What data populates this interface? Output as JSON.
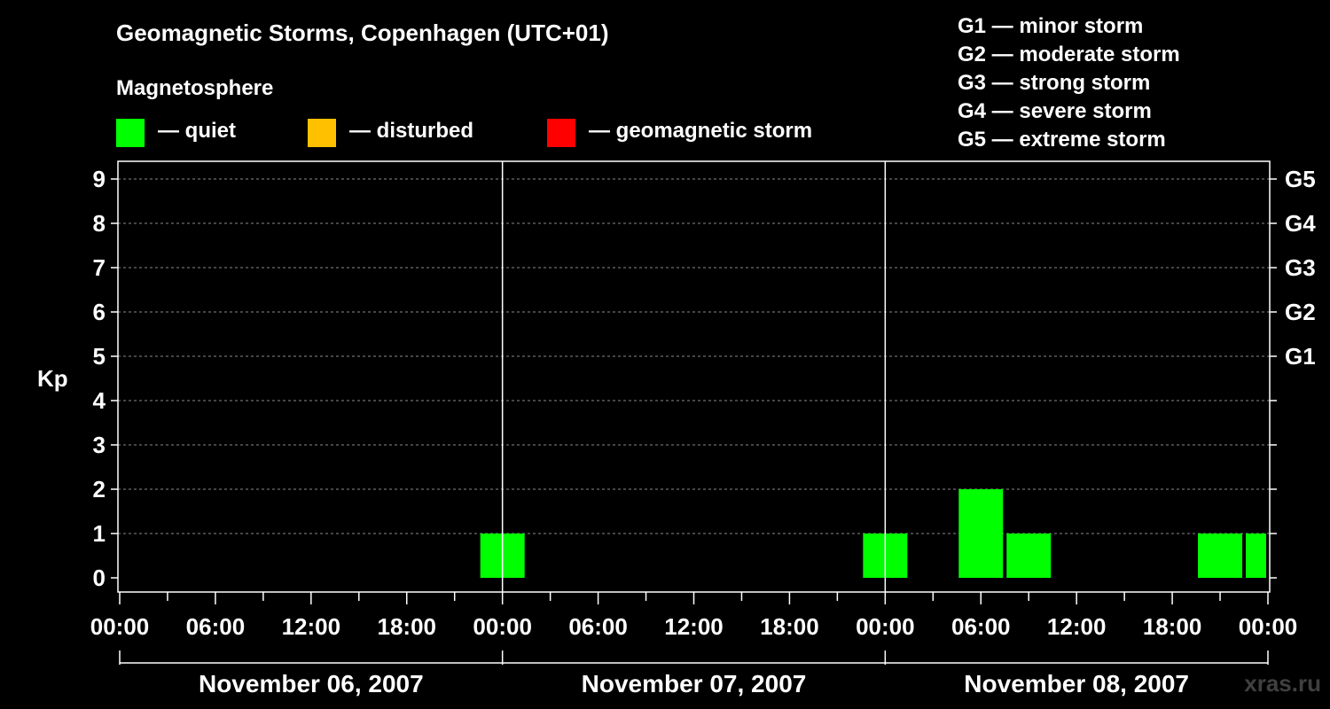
{
  "chart_data": {
    "type": "bar",
    "title": "Geomagnetic Storms, Copenhagen (UTC+01)",
    "subtitle": "Magnetosphere",
    "ylabel": "Kp",
    "ylim": [
      0,
      9
    ],
    "yticks": [
      "0",
      "1",
      "2",
      "3",
      "4",
      "5",
      "6",
      "7",
      "8",
      "9"
    ],
    "right_ticks": [
      {
        "kp": 5,
        "label": "G1"
      },
      {
        "kp": 6,
        "label": "G2"
      },
      {
        "kp": 7,
        "label": "G3"
      },
      {
        "kp": 8,
        "label": "G4"
      },
      {
        "kp": 9,
        "label": "G5"
      }
    ],
    "xtick_labels": [
      "00:00",
      "06:00",
      "12:00",
      "18:00",
      "00:00",
      "06:00",
      "12:00",
      "18:00",
      "00:00",
      "06:00",
      "12:00",
      "18:00",
      "00:00"
    ],
    "xtick_hours": [
      0,
      6,
      12,
      18,
      24,
      30,
      36,
      42,
      48,
      54,
      60,
      66,
      72
    ],
    "xlim_hours": [
      0,
      72
    ],
    "days": [
      "November 06, 2007",
      "November 07, 2007",
      "November 08, 2007"
    ],
    "grid": "dashed-horizontal",
    "bars": [
      {
        "start_hour": 22.5,
        "end_hour": 25.5,
        "kp": 1,
        "status": "quiet"
      },
      {
        "start_hour": 46.5,
        "end_hour": 49.5,
        "kp": 1,
        "status": "quiet"
      },
      {
        "start_hour": 52.5,
        "end_hour": 55.5,
        "kp": 2,
        "status": "quiet"
      },
      {
        "start_hour": 55.5,
        "end_hour": 58.5,
        "kp": 1,
        "status": "quiet"
      },
      {
        "start_hour": 67.5,
        "end_hour": 70.5,
        "kp": 1,
        "status": "quiet"
      },
      {
        "start_hour": 70.5,
        "end_hour": 72,
        "kp": 1,
        "status": "quiet"
      }
    ]
  },
  "legend": {
    "quiet": {
      "label": "— quiet",
      "color": "#00ff00"
    },
    "disturbed": {
      "label": "— disturbed",
      "color": "#ffc000"
    },
    "storm": {
      "label": "— geomagnetic storm",
      "color": "#ff0000"
    }
  },
  "storm_scale": [
    "G1 — minor storm",
    "G2 — moderate storm",
    "G3 — strong storm",
    "G4 — severe storm",
    "G5 — extreme storm"
  ],
  "watermark": "xras.ru"
}
